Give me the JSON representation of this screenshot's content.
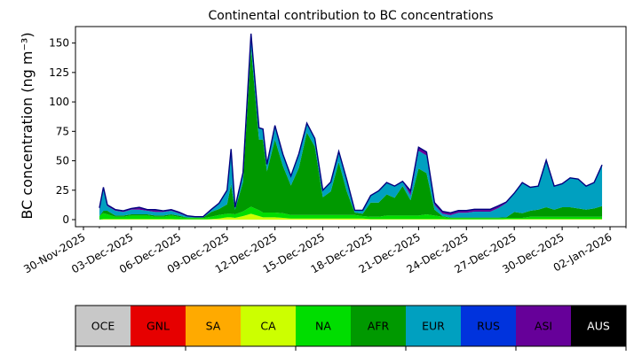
{
  "chart_data": {
    "type": "area",
    "stacked": true,
    "title": "Continental contribution to BC concentrations",
    "ylabel": "BC concentration (ng m⁻³)",
    "xlabel": "",
    "ylim": [
      -6,
      164
    ],
    "xlim": [
      "2025-11-29T12:00",
      "2026-01-03T00:00"
    ],
    "grid": false,
    "y_ticks": [
      0,
      25,
      50,
      75,
      100,
      125,
      150
    ],
    "x_ticks": [
      {
        "date": "2025-11-30",
        "label": "30-Nov-2025"
      },
      {
        "date": "2025-12-03",
        "label": "03-Dec-2025"
      },
      {
        "date": "2025-12-06",
        "label": "06-Dec-2025"
      },
      {
        "date": "2025-12-09",
        "label": "09-Dec-2025"
      },
      {
        "date": "2025-12-12",
        "label": "12-Dec-2025"
      },
      {
        "date": "2025-12-15",
        "label": "15-Dec-2025"
      },
      {
        "date": "2025-12-18",
        "label": "18-Dec-2025"
      },
      {
        "date": "2025-12-21",
        "label": "21-Dec-2025"
      },
      {
        "date": "2025-12-24",
        "label": "24-Dec-2025"
      },
      {
        "date": "2025-12-27",
        "label": "27-Dec-2025"
      },
      {
        "date": "2025-12-30",
        "label": "30-Dec-2025"
      },
      {
        "date": "2026-01-02",
        "label": "02-Jan-2026"
      }
    ],
    "total_line_color": "#000080",
    "x": [
      "2025-12-01T00:00",
      "2025-12-01T06:00",
      "2025-12-01T12:00",
      "2025-12-02T00:00",
      "2025-12-02T12:00",
      "2025-12-03T00:00",
      "2025-12-03T12:00",
      "2025-12-04T00:00",
      "2025-12-04T12:00",
      "2025-12-05T00:00",
      "2025-12-05T12:00",
      "2025-12-06T00:00",
      "2025-12-06T12:00",
      "2025-12-07T00:00",
      "2025-12-07T12:00",
      "2025-12-08T00:00",
      "2025-12-08T12:00",
      "2025-12-09T00:00",
      "2025-12-09T06:00",
      "2025-12-09T12:00",
      "2025-12-10T00:00",
      "2025-12-10T12:00",
      "2025-12-11T00:00",
      "2025-12-11T06:00",
      "2025-12-11T12:00",
      "2025-12-12T00:00",
      "2025-12-12T12:00",
      "2025-12-13T00:00",
      "2025-12-13T12:00",
      "2025-12-14T00:00",
      "2025-12-14T12:00",
      "2025-12-15T00:00",
      "2025-12-15T12:00",
      "2025-12-16T00:00",
      "2025-12-16T12:00",
      "2025-12-17T00:00",
      "2025-12-17T12:00",
      "2025-12-18T00:00",
      "2025-12-18T12:00",
      "2025-12-19T00:00",
      "2025-12-19T12:00",
      "2025-12-20T00:00",
      "2025-12-20T12:00",
      "2025-12-21T00:00",
      "2025-12-21T12:00",
      "2025-12-22T00:00",
      "2025-12-22T12:00",
      "2025-12-23T00:00",
      "2025-12-23T12:00",
      "2025-12-24T00:00",
      "2025-12-24T12:00",
      "2025-12-25T00:00",
      "2025-12-25T12:00",
      "2025-12-26T00:00",
      "2025-12-26T12:00",
      "2025-12-27T00:00",
      "2025-12-27T12:00",
      "2025-12-28T00:00",
      "2025-12-28T12:00",
      "2025-12-29T00:00",
      "2025-12-29T12:00",
      "2025-12-30T00:00",
      "2025-12-30T12:00",
      "2025-12-31T00:00",
      "2025-12-31T12:00",
      "2026-01-01T00:00",
      "2026-01-01T12:00"
    ],
    "series": [
      {
        "name": "OCE",
        "color": "#c8c8c8",
        "values": [
          0,
          0,
          0,
          0,
          0,
          0,
          0,
          0,
          0,
          0,
          0,
          0,
          0,
          0,
          0,
          0,
          0,
          0,
          0,
          0,
          0,
          0,
          0,
          0,
          0,
          0,
          0,
          0,
          0,
          0,
          0,
          0,
          0,
          0,
          0,
          0,
          0,
          0,
          0,
          0,
          0,
          0,
          0,
          0,
          0,
          0,
          0,
          0,
          0,
          0,
          0,
          0,
          0,
          0,
          0,
          0,
          0,
          0,
          0,
          0,
          0,
          0,
          0,
          0,
          0,
          0,
          0
        ]
      },
      {
        "name": "GNL",
        "color": "#e60000",
        "values": [
          0,
          0,
          0,
          0,
          0,
          0,
          0,
          0,
          0,
          0,
          0,
          0,
          0,
          0,
          0,
          0,
          0,
          0,
          0,
          0,
          0,
          0,
          0,
          0,
          0,
          0,
          0,
          0,
          0,
          0,
          0,
          0,
          0,
          0,
          0,
          0,
          0,
          0,
          0,
          0,
          0,
          0,
          0,
          0,
          0,
          0,
          0,
          0,
          0,
          0,
          0,
          0,
          0,
          0,
          0,
          0,
          0,
          0,
          0,
          0,
          0,
          0,
          0,
          0,
          0,
          0,
          0
        ]
      },
      {
        "name": "SA",
        "color": "#ffaa00",
        "values": [
          0,
          0,
          0,
          0,
          0,
          0,
          0,
          0,
          0,
          0,
          0,
          0,
          0,
          0,
          0,
          0,
          0,
          0,
          0,
          0,
          0,
          0,
          0,
          0,
          0,
          0,
          0,
          0,
          0,
          0,
          0,
          0,
          0,
          0,
          0,
          0,
          0,
          0,
          0,
          0,
          0,
          0,
          0,
          0,
          0,
          0,
          0,
          0,
          0,
          0,
          0,
          0,
          0,
          0,
          0,
          0,
          0,
          0,
          0,
          0,
          0,
          0,
          0,
          0,
          0,
          0,
          0
        ]
      },
      {
        "name": "CA",
        "color": "#ccff00",
        "values": [
          0,
          0.5,
          0.5,
          0.5,
          0.5,
          0.5,
          0.5,
          0.5,
          0.5,
          0.5,
          0.5,
          0.3,
          0.3,
          0.3,
          0.3,
          0.5,
          1,
          2,
          2,
          1.5,
          3,
          5,
          3,
          2,
          2,
          2,
          1.5,
          1,
          1,
          1,
          1,
          1,
          1,
          1,
          1,
          1,
          1,
          0.5,
          0.5,
          0.5,
          0.5,
          0.5,
          0.5,
          0.5,
          0.5,
          0.5,
          0.5,
          0.3,
          0.3,
          0.3,
          0.3,
          0.3,
          0.3,
          0.3,
          0.5,
          0.5,
          0.5,
          0.5,
          0.5,
          0.5,
          0.5,
          0.5,
          0.5,
          0.5,
          0.5,
          0.5,
          0.5
        ]
      },
      {
        "name": "NA",
        "color": "#00dd00",
        "values": [
          3,
          5,
          4,
          2,
          2,
          3,
          3,
          3,
          2,
          2,
          3,
          2,
          1,
          1,
          1,
          2,
          3,
          3,
          3,
          3,
          4,
          6,
          5,
          4,
          4,
          4,
          4,
          3,
          3,
          3,
          3,
          3,
          3,
          3,
          3,
          3,
          2,
          2,
          2,
          3,
          3,
          3,
          3,
          3,
          4,
          3,
          2,
          1,
          1,
          1,
          1,
          1,
          1,
          1,
          1,
          1,
          1,
          2,
          2,
          2,
          2,
          2,
          2,
          2,
          2,
          2,
          2
        ]
      },
      {
        "name": "AFR",
        "color": "#009900",
        "values": [
          0,
          2,
          3,
          1,
          1,
          1,
          1,
          1,
          1,
          1,
          1,
          1,
          0.5,
          0.5,
          0.5,
          4,
          5,
          8,
          25,
          4,
          25,
          135,
          60,
          62,
          35,
          62,
          40,
          25,
          40,
          70,
          58,
          15,
          20,
          45,
          20,
          2,
          2,
          12,
          12,
          18,
          15,
          25,
          13,
          40,
          35,
          5,
          0.5,
          0.5,
          0.5,
          0.5,
          0.5,
          0.5,
          0.5,
          0.5,
          0.5,
          5,
          4,
          5,
          6,
          8,
          6,
          8,
          8,
          7,
          6,
          7,
          9
        ]
      },
      {
        "name": "EUR",
        "color": "#00a0c0",
        "values": [
          5,
          20,
          4,
          4,
          3,
          4,
          4,
          3,
          3,
          3,
          3,
          2,
          1,
          0.5,
          0.5,
          2,
          5,
          12,
          30,
          2,
          8,
          12,
          10,
          9,
          6,
          12,
          10,
          8,
          12,
          8,
          7,
          6,
          8,
          9,
          10,
          2,
          3,
          6,
          10,
          10,
          10,
          4,
          4,
          15,
          15,
          4,
          2,
          2,
          4,
          4,
          5,
          5,
          5,
          8,
          12,
          16,
          26,
          20,
          20,
          40,
          20,
          20,
          25,
          25,
          20,
          22,
          35
        ]
      },
      {
        "name": "RUS",
        "color": "#0033dd",
        "values": [
          0,
          0,
          0,
          0,
          0,
          0,
          0,
          0,
          0,
          0,
          0,
          0,
          0,
          0,
          0,
          0,
          0,
          0,
          0,
          0,
          0,
          0,
          0,
          0,
          0,
          0,
          0,
          0,
          0,
          0,
          0,
          0,
          0,
          0,
          0,
          0,
          0,
          0,
          0,
          0,
          0,
          0,
          0,
          0,
          0,
          0,
          0,
          0,
          0,
          0,
          0,
          0,
          0,
          0,
          0,
          0,
          0,
          0,
          0,
          0,
          0,
          0,
          0,
          0,
          0,
          0,
          0
        ]
      },
      {
        "name": "ASI",
        "color": "#660099",
        "values": [
          2,
          0,
          1,
          1,
          1,
          1,
          2,
          1,
          2,
          1,
          1,
          1,
          0.5,
          0.2,
          0.2,
          0,
          0,
          0,
          0,
          0,
          0,
          0,
          0,
          0,
          0,
          0,
          0,
          0,
          0,
          0,
          0,
          0,
          0,
          0,
          0,
          0,
          0,
          0,
          0,
          0,
          0,
          0,
          4,
          3,
          3,
          2,
          2,
          2,
          2,
          2,
          2,
          2,
          2,
          2,
          1,
          0,
          0,
          0,
          0,
          0,
          0,
          0,
          0,
          0,
          0,
          0,
          0
        ]
      },
      {
        "name": "AUS",
        "color": "#000000",
        "values": [
          0,
          0,
          0,
          0,
          0,
          0,
          0,
          0,
          0,
          0,
          0,
          0,
          0,
          0,
          0,
          0,
          0,
          0,
          0,
          0,
          0,
          0,
          0,
          0,
          0,
          0,
          0,
          0,
          0,
          0,
          0,
          0,
          0,
          0,
          0,
          0,
          0,
          0,
          0,
          0,
          0,
          0,
          0,
          0,
          0,
          0,
          0,
          0,
          0,
          0,
          0,
          0,
          0,
          0,
          0,
          0,
          0,
          0,
          0,
          0,
          0,
          0,
          0,
          0,
          0,
          0,
          0
        ]
      }
    ],
    "legend": {
      "placement": "bottom",
      "entries": [
        {
          "name": "OCE",
          "color": "#c8c8c8",
          "text_color": "#000000"
        },
        {
          "name": "GNL",
          "color": "#e60000",
          "text_color": "#000000"
        },
        {
          "name": "SA",
          "color": "#ffaa00",
          "text_color": "#000000"
        },
        {
          "name": "CA",
          "color": "#ccff00",
          "text_color": "#000000"
        },
        {
          "name": "NA",
          "color": "#00dd00",
          "text_color": "#000000"
        },
        {
          "name": "AFR",
          "color": "#009900",
          "text_color": "#000000"
        },
        {
          "name": "EUR",
          "color": "#00a0c0",
          "text_color": "#000000"
        },
        {
          "name": "RUS",
          "color": "#0033dd",
          "text_color": "#000000"
        },
        {
          "name": "ASI",
          "color": "#660099",
          "text_color": "#000000"
        },
        {
          "name": "AUS",
          "color": "#000000",
          "text_color": "#ffffff"
        }
      ]
    }
  }
}
